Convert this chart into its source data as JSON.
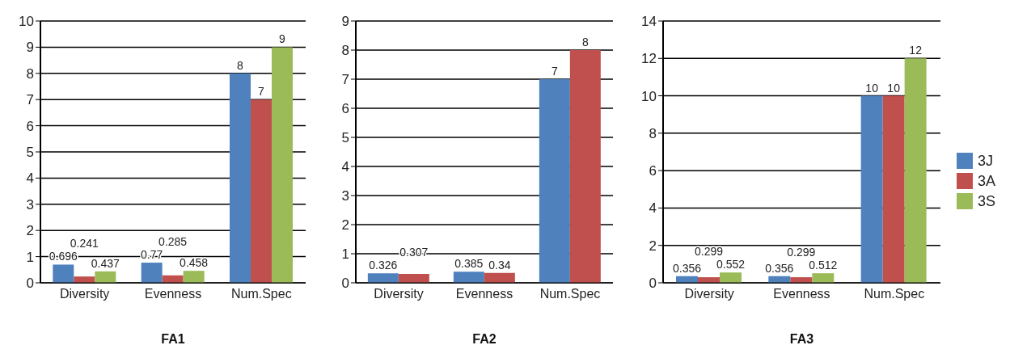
{
  "chart_data": [
    {
      "type": "bar",
      "xlabel": "FA1",
      "categories": [
        "Diversity",
        "Evenness",
        "Num.Spec"
      ],
      "series": [
        {
          "color": "#4f81bd",
          "values": [
            0.696,
            0.77,
            8
          ]
        },
        {
          "color": "#c0504d",
          "values": [
            0.241,
            0.285,
            7
          ]
        },
        {
          "color": "#9bbb59",
          "values": [
            0.437,
            0.458,
            9
          ]
        }
      ],
      "ylim": [
        0,
        10
      ],
      "yticks": [
        0,
        1,
        2,
        3,
        4,
        5,
        6,
        7,
        8,
        9,
        10
      ],
      "grid": "y",
      "data_labels": true,
      "legend": false
    },
    {
      "type": "bar",
      "xlabel": "FA2",
      "categories": [
        "Diversity",
        "Evenness",
        "Num.Spec"
      ],
      "series": [
        {
          "color": "#4f81bd",
          "values": [
            0.326,
            0.385,
            7
          ]
        },
        {
          "color": "#c0504d",
          "values": [
            0.307,
            0.34,
            8
          ]
        }
      ],
      "ylim": [
        0,
        9
      ],
      "yticks": [
        0,
        1,
        2,
        3,
        4,
        5,
        6,
        7,
        8,
        9
      ],
      "grid": "y",
      "data_labels": true,
      "legend": false
    },
    {
      "type": "bar",
      "xlabel": "FA3",
      "categories": [
        "Diversity",
        "Evenness",
        "Num.Spec"
      ],
      "series": [
        {
          "name": "3J",
          "color": "#4f81bd",
          "values": [
            0.356,
            0.356,
            10
          ]
        },
        {
          "name": "3A",
          "color": "#c0504d",
          "values": [
            0.299,
            0.299,
            10
          ]
        },
        {
          "name": "3S",
          "color": "#9bbb59",
          "values": [
            0.552,
            0.512,
            12
          ]
        }
      ],
      "ylim": [
        0,
        14
      ],
      "yticks": [
        0,
        2,
        4,
        6,
        8,
        10,
        12,
        14
      ],
      "grid": "y",
      "data_labels": true,
      "legend": "right"
    }
  ]
}
